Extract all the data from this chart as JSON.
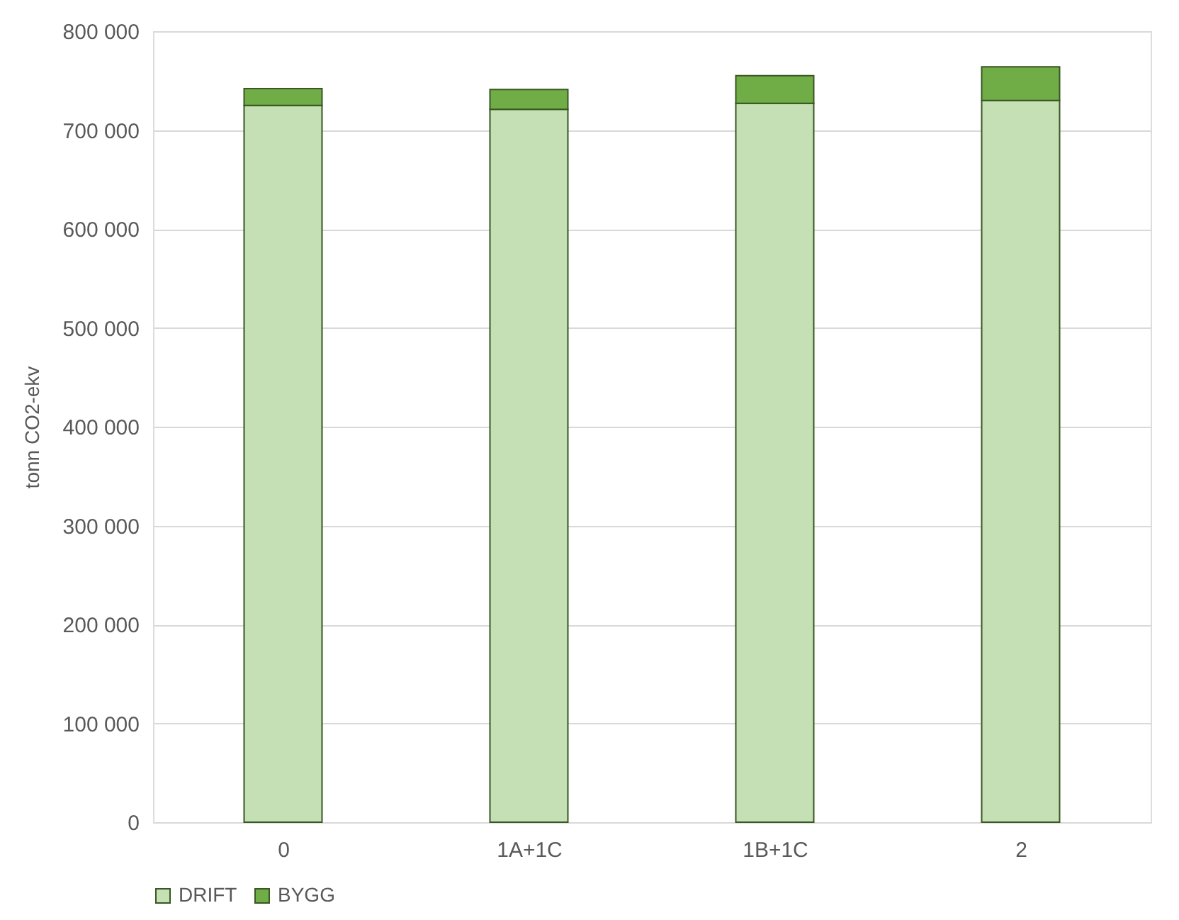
{
  "chart_data": {
    "type": "bar",
    "stacked": true,
    "ylabel": "tonn CO2-ekv",
    "categories": [
      "0",
      "1A+1C",
      "1B+1C",
      "2"
    ],
    "series": [
      {
        "name": "DRIFT",
        "color": "#c5e0b4",
        "values": [
          725000,
          721000,
          727000,
          730000
        ]
      },
      {
        "name": "BYGG",
        "color": "#70ad47",
        "values": [
          17000,
          20000,
          28000,
          34000
        ]
      }
    ],
    "ylim": [
      0,
      800000
    ],
    "yticks": [
      {
        "value": 0,
        "label": "0"
      },
      {
        "value": 100000,
        "label": "100 000"
      },
      {
        "value": 200000,
        "label": "200 000"
      },
      {
        "value": 300000,
        "label": "300 000"
      },
      {
        "value": 400000,
        "label": "400 000"
      },
      {
        "value": 500000,
        "label": "500 000"
      },
      {
        "value": 600000,
        "label": "600 000"
      },
      {
        "value": 700000,
        "label": "700 000"
      },
      {
        "value": 800000,
        "label": "800 000"
      }
    ],
    "grid": "y",
    "legend": "bottom"
  }
}
